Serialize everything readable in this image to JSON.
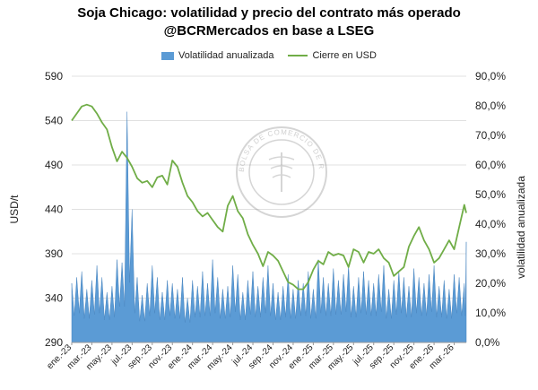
{
  "chart_data": {
    "type": "bar+line",
    "title": "Soja Chicago: volatilidad y precio del contrato más operado",
    "subtitle": "@BCRMercados en base a LSEG",
    "legend": [
      "Volatilidad anualizada",
      "Cierre en USD"
    ],
    "ylabel_left": "USD/t",
    "ylabel_right": "volatilidad anualizada",
    "ylim_left": [
      290,
      590
    ],
    "ylim_right": [
      0,
      90
    ],
    "yticks_left": [
      "290",
      "340",
      "390",
      "440",
      "490",
      "540",
      "590"
    ],
    "yticks_right": [
      "0,0%",
      "10,0%",
      "20,0%",
      "30,0%",
      "40,0%",
      "50,0%",
      "60,0%",
      "70,0%",
      "80,0%",
      "90,0%"
    ],
    "xticks": [
      "ene.-23",
      "mar.-23",
      "may.-23",
      "jul.-23",
      "sep.-23",
      "nov.-23",
      "ene.-24",
      "mar.-24",
      "may.-24",
      "jul.-24",
      "sep.-24",
      "nov.-24",
      "ene.-25",
      "mar.-25",
      "may.-25",
      "jul.-25",
      "sep.-25",
      "nov.-25",
      "ene.-26",
      "mar.-26"
    ],
    "price_series": {
      "name": "Cierre en USD",
      "x_month": [
        0,
        0.5,
        1,
        1.5,
        2,
        2.5,
        3,
        3.5,
        4,
        4.5,
        5,
        5.5,
        6,
        6.5,
        7,
        7.5,
        8,
        8.5,
        9,
        9.5,
        10,
        10.5,
        11,
        11.5,
        12,
        12.5,
        13,
        13.5,
        14,
        14.5,
        15,
        15.5,
        16,
        16.5,
        17,
        17.5,
        18,
        18.5,
        19,
        19.5,
        20,
        20.5,
        21,
        21.5,
        22,
        22.5,
        23,
        23.5,
        24,
        24.5,
        25,
        25.5,
        26,
        26.5,
        27,
        27.5,
        28,
        28.5,
        29,
        29.5,
        30,
        30.5,
        31,
        31.5,
        32,
        32.5,
        33,
        33.5,
        34,
        34.5,
        35,
        35.5,
        36,
        36.5,
        37,
        37.5,
        38,
        38.5,
        39,
        39.2
      ],
      "values": [
        540,
        548,
        556,
        558,
        556,
        548,
        538,
        530,
        510,
        494,
        505,
        498,
        488,
        475,
        470,
        472,
        465,
        476,
        478,
        468,
        495,
        488,
        470,
        455,
        448,
        438,
        432,
        436,
        428,
        420,
        415,
        444,
        455,
        438,
        430,
        412,
        400,
        390,
        376,
        392,
        388,
        382,
        370,
        358,
        355,
        350,
        350,
        358,
        372,
        382,
        378,
        392,
        388,
        390,
        388,
        375,
        395,
        392,
        380,
        392,
        390,
        395,
        385,
        380,
        365,
        370,
        375,
        398,
        410,
        420,
        405,
        395,
        380,
        385,
        395,
        405,
        395,
        420,
        445,
        436
      ]
    },
    "volatility_series": {
      "name": "Volatilidad anualizada",
      "x_month": [
        0,
        0.5,
        1,
        1.5,
        2,
        2.5,
        3,
        3.5,
        4,
        4.5,
        5,
        5.5,
        6,
        6.5,
        7,
        7.5,
        8,
        8.5,
        9,
        9.5,
        10,
        10.5,
        11,
        11.5,
        12,
        12.5,
        13,
        13.5,
        14,
        14.5,
        15,
        15.5,
        16,
        16.5,
        17,
        17.5,
        18,
        18.5,
        19,
        19.5,
        20,
        20.5,
        21,
        21.5,
        22,
        22.5,
        23,
        23.5,
        24,
        24.5,
        25,
        25.5,
        26,
        26.5,
        27,
        27.5,
        28,
        28.5,
        29,
        29.5,
        30,
        30.5,
        31,
        31.5,
        32,
        32.5,
        33,
        33.5,
        34,
        34.5,
        35,
        35.5,
        36,
        36.5,
        37,
        37.5,
        38,
        38.5,
        39,
        39.2
      ],
      "values": [
        20,
        22,
        24,
        18,
        21,
        26,
        22,
        17,
        19,
        28,
        27,
        78,
        45,
        22,
        16,
        20,
        26,
        22,
        17,
        21,
        20,
        18,
        22,
        15,
        21,
        19,
        24,
        20,
        28,
        22,
        18,
        19,
        26,
        23,
        17,
        21,
        24,
        19,
        22,
        26,
        20,
        17,
        19,
        23,
        18,
        21,
        20,
        24,
        18,
        28,
        22,
        20,
        25,
        21,
        23,
        26,
        19,
        22,
        24,
        21,
        20,
        23,
        26,
        18,
        21,
        24,
        22,
        19,
        25,
        22,
        20,
        23,
        26,
        19,
        21,
        18,
        23,
        22,
        20,
        34
      ]
    }
  },
  "watermark": {
    "ring_text": "BOLSA DE COMERCIO DE ROSARIO"
  }
}
